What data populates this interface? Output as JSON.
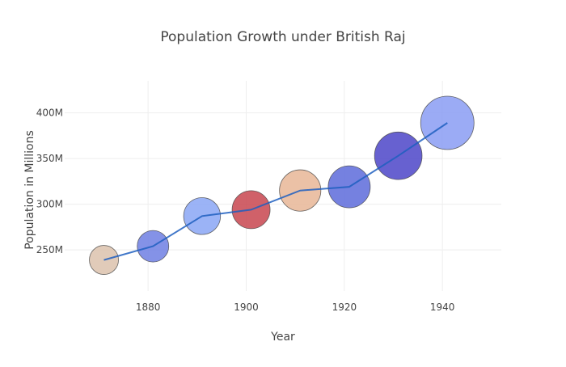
{
  "chart_data": {
    "type": "scatter",
    "title": "Population Growth under British Raj",
    "xlabel": "Year",
    "ylabel": "Population in Millions",
    "x_ticks": [
      1880,
      1900,
      1920,
      1940
    ],
    "y_ticks": [
      250,
      300,
      350,
      400
    ],
    "y_tick_labels": [
      "250M",
      "300M",
      "350M",
      "400M"
    ],
    "xlim": [
      1863,
      1952
    ],
    "ylim": [
      205,
      435
    ],
    "grid": true,
    "legend": "none",
    "series": [
      {
        "mode": "lines+markers",
        "x": [
          1871,
          1881,
          1891,
          1901,
          1911,
          1921,
          1931,
          1941
        ],
        "y": [
          239,
          254,
          287,
          294,
          315,
          319,
          353,
          389
        ],
        "marker_colors": [
          "#dcc2ad",
          "#6f7fe3",
          "#8aa6f5",
          "#c8454f",
          "#e8b696",
          "#5d6bdb",
          "#4c45c8",
          "#8a9cf3"
        ],
        "line_color": "#1f5fbf"
      }
    ]
  }
}
